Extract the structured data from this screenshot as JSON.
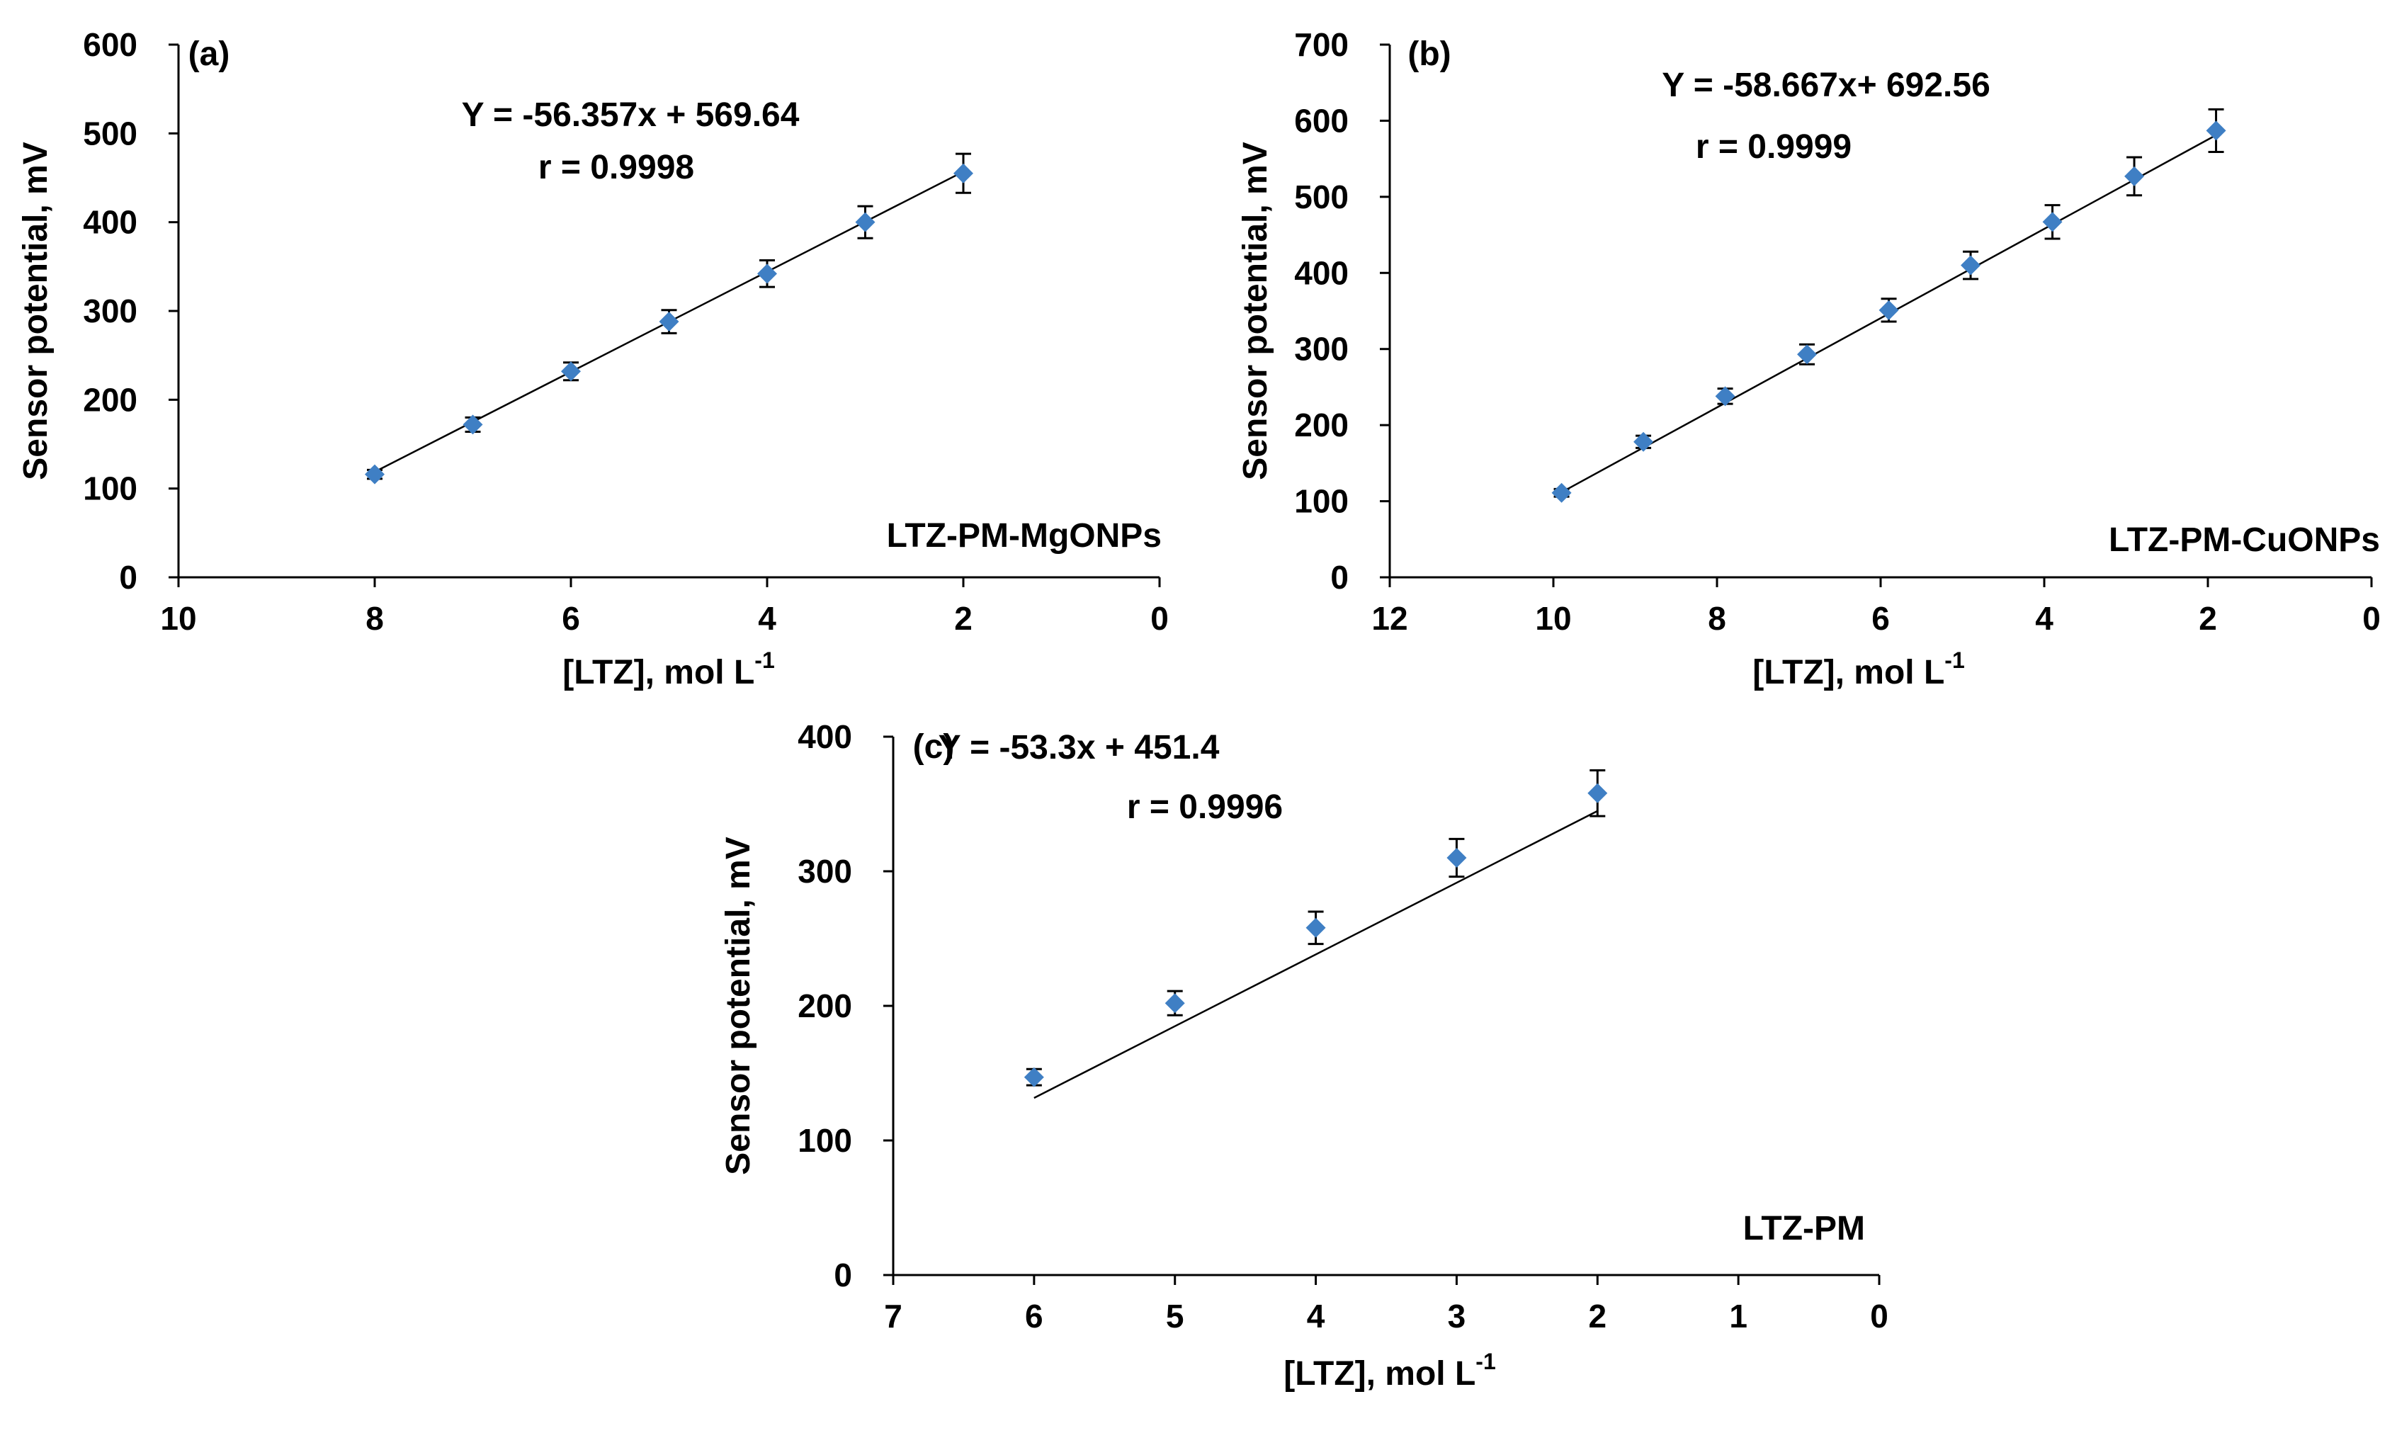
{
  "chart_data": [
    {
      "type": "scatter",
      "panel_label": "(a)",
      "series_label": "LTZ-PM-MgONPs",
      "equation": "Y = -56.357x + 569.64",
      "r_value": "r = 0.9998",
      "xlabel": "[LTZ], mol L",
      "xlabel_superscript": "-1",
      "ylabel": "Sensor potential, mV",
      "xlim": [
        10,
        0
      ],
      "ylim": [
        0,
        600
      ],
      "xticks": [
        10,
        8,
        6,
        4,
        2,
        0
      ],
      "yticks": [
        0,
        100,
        200,
        300,
        400,
        500,
        600
      ],
      "x_reversed": true,
      "x": [
        8,
        7,
        6,
        5,
        4,
        3,
        2
      ],
      "y": [
        116,
        172,
        232,
        288,
        342,
        400,
        455
      ],
      "y_error": [
        5,
        8,
        10,
        13,
        15,
        18,
        22
      ],
      "fit": {
        "slope": -56.357,
        "intercept": 569.64,
        "x_range": [
          8,
          2
        ]
      },
      "marker_color": "#3f7fc4"
    },
    {
      "type": "scatter",
      "panel_label": "(b)",
      "series_label": "LTZ-PM-CuONPs",
      "equation": "Y = -58.667x+ 692.56",
      "r_value": "r = 0.9999",
      "xlabel": "[LTZ], mol L",
      "xlabel_superscript": "-1",
      "ylabel": "Sensor potential, mV",
      "xlim": [
        12,
        0
      ],
      "ylim": [
        0,
        700
      ],
      "xticks": [
        12,
        10,
        8,
        6,
        4,
        2,
        0
      ],
      "yticks": [
        0,
        100,
        200,
        300,
        400,
        500,
        600,
        700
      ],
      "x_reversed": true,
      "x": [
        9.9,
        8.9,
        7.9,
        6.9,
        5.9,
        4.9,
        3.9,
        2.9,
        1.9
      ],
      "y": [
        111,
        178,
        238,
        293,
        351,
        410,
        467,
        527,
        587
      ],
      "y_error": [
        5,
        8,
        10,
        13,
        15,
        18,
        22,
        25,
        28
      ],
      "fit": {
        "slope": -58.667,
        "intercept": 692.56,
        "x_range": [
          9.9,
          1.9
        ]
      },
      "marker_color": "#3f7fc4"
    },
    {
      "type": "scatter",
      "panel_label": "(c)",
      "series_label": "LTZ-PM",
      "equation": "Y = -53.3x + 451.4",
      "r_value": "r = 0.9996",
      "xlabel": "[LTZ], mol L",
      "xlabel_superscript": "-1",
      "ylabel": "Sensor potential, mV",
      "xlim": [
        7,
        0
      ],
      "ylim": [
        0,
        400
      ],
      "xticks": [
        7,
        6,
        5,
        4,
        3,
        2,
        1,
        0
      ],
      "yticks": [
        0,
        100,
        200,
        300,
        400
      ],
      "x_reversed": true,
      "x": [
        6,
        5,
        4,
        3,
        2
      ],
      "y": [
        147,
        202,
        258,
        310,
        358
      ],
      "y_error": [
        6,
        9,
        12,
        14,
        17
      ],
      "fit": {
        "slope": -53.3,
        "intercept": 451.4,
        "x_range": [
          6,
          2
        ]
      },
      "marker_color": "#3f7fc4"
    }
  ]
}
